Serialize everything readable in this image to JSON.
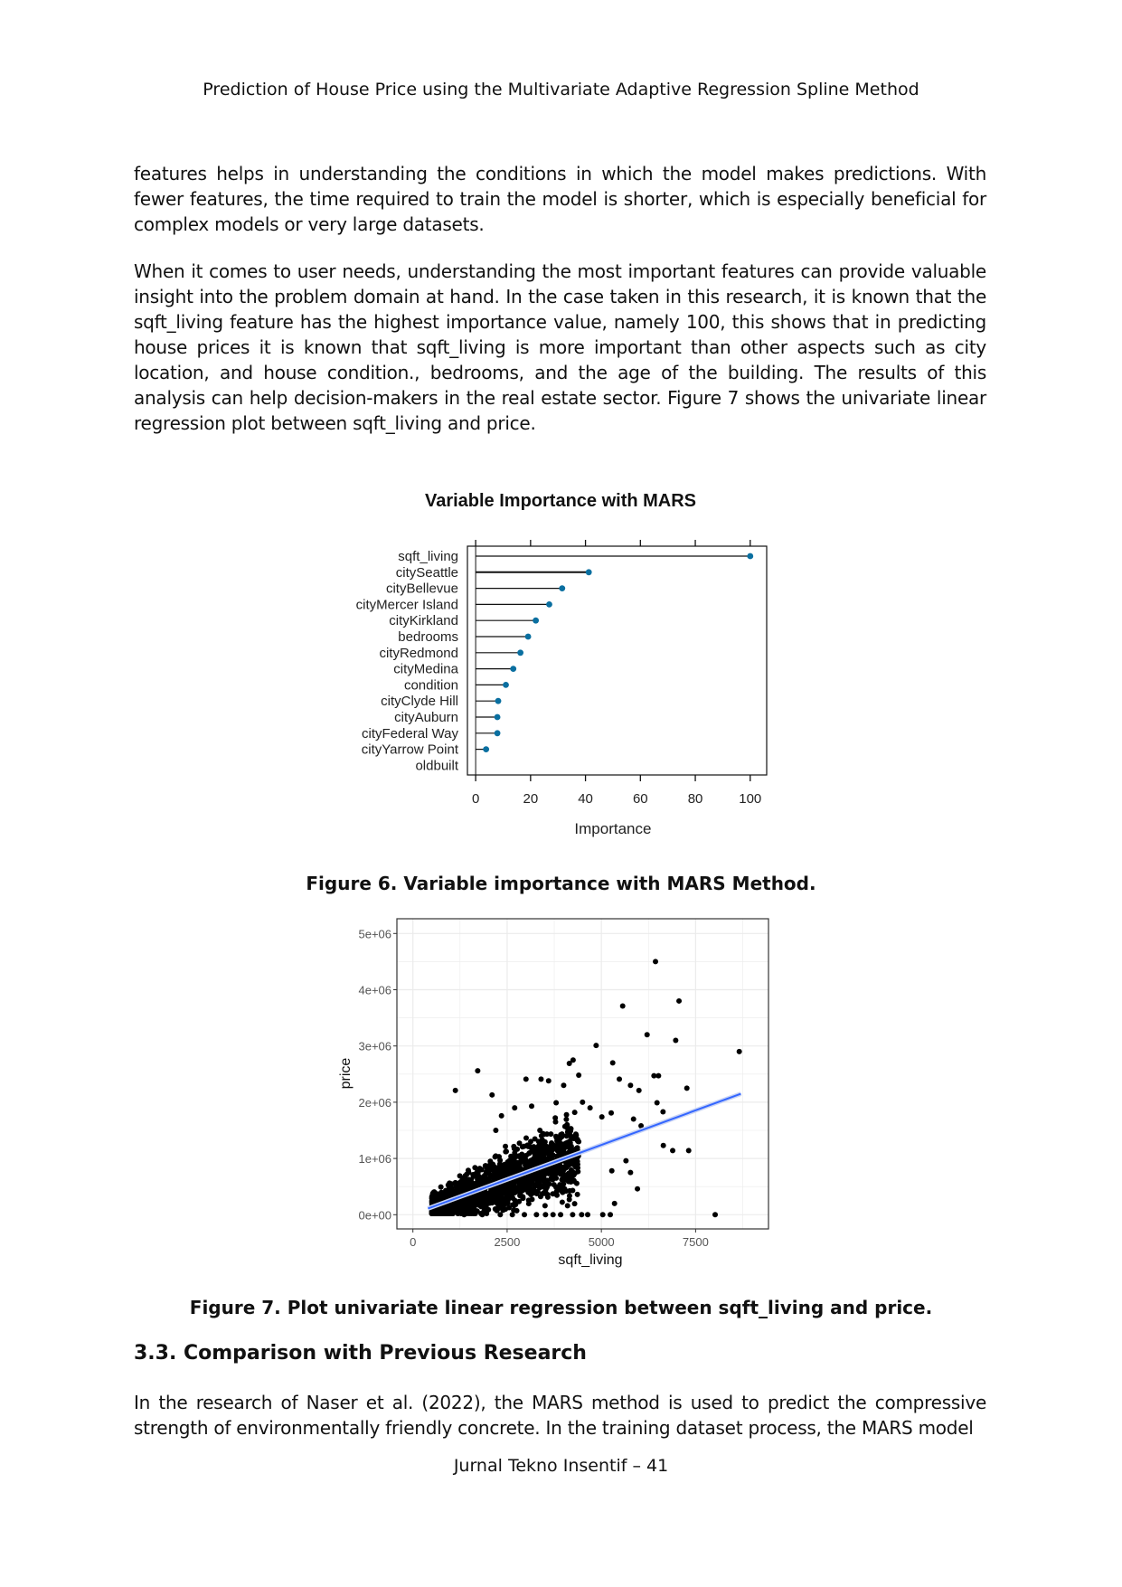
{
  "header": "Prediction of House Price using the Multivariate Adaptive Regression Spline Method",
  "paragraphs": [
    "features helps in understanding the conditions in which the model makes predictions. With fewer features, the time required to train the model is shorter, which is especially beneficial for complex models or very large datasets.",
    "When it comes to user needs, understanding the most important features can provide valuable insight into the problem domain at hand. In the case taken in this research, it is known that the sqft_living feature has the highest importance value, namely 100, this shows that in predicting house prices it is known that sqft_living is more important than other aspects such as city location, and house condition., bedrooms, and the age of the building. The results of this analysis can help decision-makers in the real estate sector. Figure 7 shows the univariate linear regression plot between sqft_living and price."
  ],
  "figure6_caption": "Figure 6. Variable importance with MARS Method.",
  "figure7_caption": "Figure 7. Plot univariate linear regression between sqft_living and price.",
  "section_heading": "3.3. Comparison with Previous Research",
  "paragraph3": "In the research of Naser et al. (2022), the MARS method is used to predict the compressive strength of environmentally friendly concrete. In the training dataset process, the MARS model",
  "footer": "Jurnal Tekno Insentif – 41",
  "chart_data": [
    {
      "type": "dot",
      "title": "Variable Importance with MARS",
      "xlabel": "Importance",
      "ylabel": "",
      "xlim": [
        -3,
        106
      ],
      "xticks": [
        0,
        20,
        40,
        60,
        80,
        100
      ],
      "point_color": "#0a6fa0",
      "categories": [
        "sqft_living",
        "citySeattle",
        "cityBellevue",
        "cityMercer Island",
        "cityKirkland",
        "bedrooms",
        "cityRedmond",
        "cityMedina",
        "condition",
        "cityClyde Hill",
        "cityAuburn",
        "cityFederal Way",
        "cityYarrow Point",
        "oldbuilt"
      ],
      "values": [
        100,
        41.2,
        31.5,
        26.8,
        21.9,
        19.1,
        16.3,
        13.7,
        11.0,
        8.2,
        7.9,
        7.9,
        3.8,
        0
      ],
      "grid": false
    },
    {
      "type": "scatter",
      "xlabel": "sqft_living",
      "ylabel": "price",
      "xlim": [
        -450,
        9400
      ],
      "ylim": [
        -250000,
        5250000
      ],
      "xticks": [
        0,
        2500,
        5000,
        7500
      ],
      "xtick_labels": [
        "0",
        "2500",
        "5000",
        "7500"
      ],
      "yticks": [
        0,
        1000000,
        2000000,
        3000000,
        4000000,
        5000000
      ],
      "ytick_labels": [
        "0e+00",
        "1e+06",
        "2e+06",
        "3e+06",
        "4e+06",
        "5e+06"
      ],
      "grid": true,
      "point_color": "#000000",
      "line_color": "#3366ff",
      "regression_line": {
        "x": [
          400,
          8700
        ],
        "y": [
          110000,
          2150000
        ]
      },
      "points": [
        [
          6436,
          4500000
        ],
        [
          5565,
          3710000
        ],
        [
          7060,
          3800000
        ],
        [
          6213,
          3200000
        ],
        [
          6972,
          3100000
        ],
        [
          8659,
          2900000
        ],
        [
          4861,
          3010000
        ],
        [
          1719,
          2560000
        ],
        [
          1127,
          2210000
        ],
        [
          7268,
          2250000
        ],
        [
          6476,
          1990000
        ],
        [
          6636,
          1830000
        ],
        [
          6644,
          1230000
        ],
        [
          6892,
          1140000
        ],
        [
          7316,
          1140000
        ],
        [
          8019,
          0
        ],
        [
          5957,
          460000
        ],
        [
          5349,
          200000
        ],
        [
          6396,
          2470000
        ],
        [
          6516,
          2470000
        ],
        [
          5301,
          2700000
        ],
        [
          5997,
          2210000
        ],
        [
          6053,
          1580000
        ],
        [
          5853,
          1700000
        ],
        [
          5773,
          2300000
        ],
        [
          5477,
          2410000
        ],
        [
          5653,
          960000
        ],
        [
          5773,
          750000
        ],
        [
          5277,
          780000
        ],
        [
          5013,
          1740000
        ],
        [
          5261,
          1810000
        ],
        [
          1359,
          0
        ],
        [
          1839,
          0
        ],
        [
          2318,
          0
        ],
        [
          2638,
          0
        ],
        [
          2958,
          0
        ],
        [
          3278,
          0
        ],
        [
          3518,
          0
        ],
        [
          3718,
          0
        ],
        [
          3918,
          0
        ],
        [
          4238,
          0
        ],
        [
          4477,
          0
        ],
        [
          4637,
          0
        ],
        [
          5037,
          0
        ],
        [
          5237,
          0
        ],
        [
          3000,
          2410000
        ],
        [
          3400,
          2410000
        ],
        [
          3600,
          2380000
        ],
        [
          4000,
          2300000
        ],
        [
          4250,
          2750000
        ],
        [
          4150,
          2690000
        ],
        [
          4400,
          2480000
        ],
        [
          2700,
          1900000
        ],
        [
          2200,
          1500000
        ],
        [
          2100,
          2130000
        ],
        [
          2350,
          1760000
        ],
        [
          3150,
          1930000
        ],
        [
          3800,
          1990000
        ],
        [
          4500,
          2000000
        ],
        [
          4700,
          1900000
        ]
      ]
    }
  ]
}
